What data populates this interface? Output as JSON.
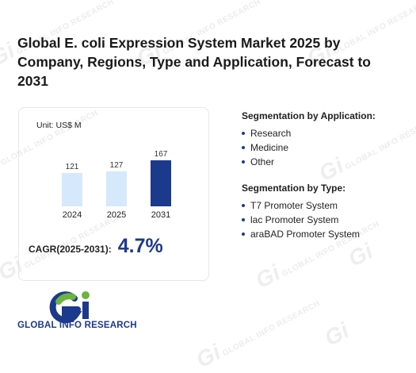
{
  "title": "Global E. coli Expression System Market 2025 by Company, Regions, Type and Application, Forecast to 2031",
  "unit_label": "Unit: US$ M",
  "chart_data": {
    "type": "bar",
    "categories": [
      "2024",
      "2025",
      "2031"
    ],
    "values": [
      121,
      127,
      167
    ],
    "ylim": [
      0,
      167
    ],
    "grid": false,
    "bar_colors": [
      "#d6e8fb",
      "#d6e8fb",
      "#1b3a8c"
    ],
    "title": "",
    "xlabel": "",
    "ylabel": ""
  },
  "cagr": {
    "label": "CAGR(2025-2031):",
    "value": "4.7%"
  },
  "application": {
    "title": "Segmentation by Application:",
    "items": [
      "Research",
      "Medicine",
      "Other"
    ]
  },
  "type_seg": {
    "title": "Segmentation by Type:",
    "items": [
      "T7 Promoter System",
      "lac Promoter System",
      "araBAD Promoter System"
    ]
  },
  "logo": {
    "text": "GLOBAL INFO RESEARCH",
    "icon": "gi-logo-icon"
  },
  "watermark": {
    "text": "GLOBAL INFO RESEARCH"
  }
}
